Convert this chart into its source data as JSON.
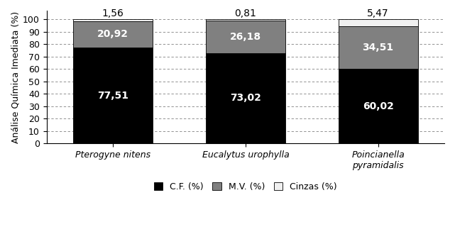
{
  "categories": [
    "Pterogyne nitens",
    "Eucalytus urophylla",
    "Poincianella\npyramidalis"
  ],
  "cf_values": [
    77.51,
    73.02,
    60.02
  ],
  "mv_values": [
    20.92,
    26.18,
    34.51
  ],
  "cinzas_values": [
    1.56,
    0.81,
    5.47
  ],
  "cf_color": "#000000",
  "mv_color": "#808080",
  "cinzas_color": "#f0f0f0",
  "ylabel": "Análise Química Imediata (%)",
  "ylim": [
    0,
    105
  ],
  "yticks": [
    0,
    10,
    20,
    30,
    40,
    50,
    60,
    70,
    80,
    90,
    100
  ],
  "legend_labels": [
    "C.F. (%)",
    "M.V. (%)",
    "Cinzas (%)"
  ],
  "bar_width": 0.6,
  "cf_label_color": "white",
  "mv_label_color": "white",
  "cinzas_label_color": "black",
  "label_fontsize": 10,
  "tick_fontsize": 9,
  "ylabel_fontsize": 9,
  "legend_fontsize": 9,
  "x_positions": [
    0,
    1,
    2
  ]
}
